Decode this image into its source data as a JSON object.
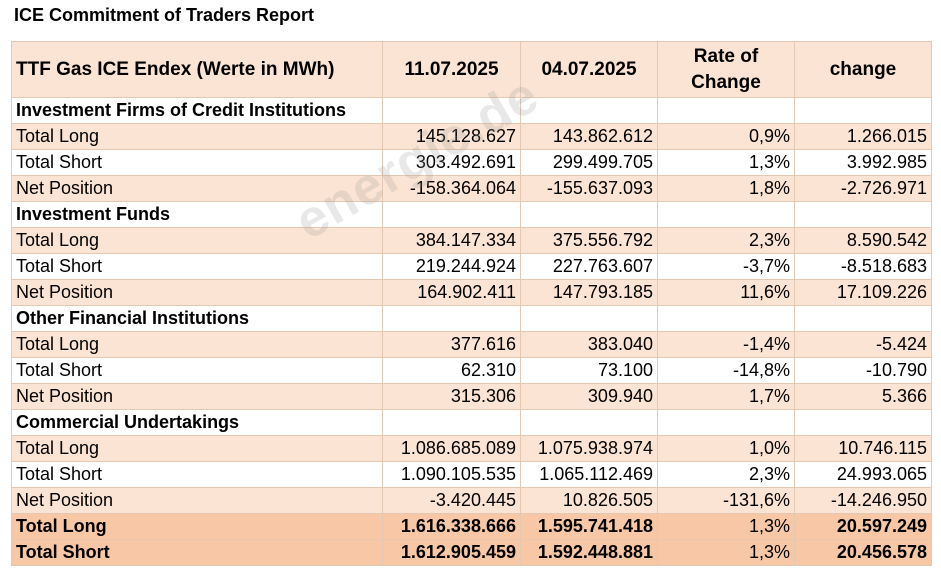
{
  "title": "ICE Commitment of Traders Report",
  "watermark": "energie.de",
  "header": {
    "col0": "TTF Gas ICE Endex (Werte in MWh)",
    "col1": "11.07.2025",
    "col2": "04.07.2025",
    "col3": "Rate of Change",
    "col4": "change"
  },
  "sections": [
    {
      "name": "Investment Firms of Credit Institutions",
      "rows": [
        {
          "label": "Total Long",
          "v1": "145.128.627",
          "v2": "143.862.612",
          "rate": "0,9%",
          "change": "1.266.015"
        },
        {
          "label": "Total Short",
          "v1": "303.492.691",
          "v2": "299.499.705",
          "rate": "1,3%",
          "change": "3.992.985"
        },
        {
          "label": "Net Position",
          "v1": "-158.364.064",
          "v2": "-155.637.093",
          "rate": "1,8%",
          "change": "-2.726.971"
        }
      ]
    },
    {
      "name": "Investment Funds",
      "rows": [
        {
          "label": "Total Long",
          "v1": "384.147.334",
          "v2": "375.556.792",
          "rate": "2,3%",
          "change": "8.590.542"
        },
        {
          "label": "Total Short",
          "v1": "219.244.924",
          "v2": "227.763.607",
          "rate": "-3,7%",
          "change": "-8.518.683"
        },
        {
          "label": "Net Position",
          "v1": "164.902.411",
          "v2": "147.793.185",
          "rate": "11,6%",
          "change": "17.109.226"
        }
      ]
    },
    {
      "name": "Other Financial Institutions",
      "rows": [
        {
          "label": "Total Long",
          "v1": "377.616",
          "v2": "383.040",
          "rate": "-1,4%",
          "change": "-5.424"
        },
        {
          "label": "Total Short",
          "v1": "62.310",
          "v2": "73.100",
          "rate": "-14,8%",
          "change": "-10.790"
        },
        {
          "label": "Net Position",
          "v1": "315.306",
          "v2": "309.940",
          "rate": "1,7%",
          "change": "5.366"
        }
      ]
    },
    {
      "name": "Commercial Undertakings",
      "rows": [
        {
          "label": "Total Long",
          "v1": "1.086.685.089",
          "v2": "1.075.938.974",
          "rate": "1,0%",
          "change": "10.746.115"
        },
        {
          "label": "Total Short",
          "v1": "1.090.105.535",
          "v2": "1.065.112.469",
          "rate": "2,3%",
          "change": "24.993.065"
        },
        {
          "label": "Net Position",
          "v1": "-3.420.445",
          "v2": "10.826.505",
          "rate": "-131,6%",
          "change": "-14.246.950"
        }
      ]
    }
  ],
  "totals": [
    {
      "label": "Total Long",
      "v1": "1.616.338.666",
      "v2": "1.595.741.418",
      "rate": "1,3%",
      "change": "20.597.249"
    },
    {
      "label": "Total Short",
      "v1": "1.612.905.459",
      "v2": "1.592.448.881",
      "rate": "1,3%",
      "change": "20.456.578"
    }
  ]
}
